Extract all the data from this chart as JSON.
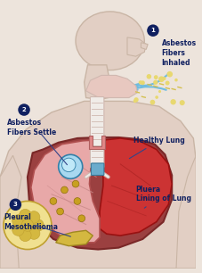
{
  "background_color": "#ede4dc",
  "body_color": "#e2cfc4",
  "body_outline": "#c9b5a5",
  "lung_left_color": "#e8a8a8",
  "lung_left_outline": "#b05050",
  "lung_right_color": "#cc3333",
  "lung_right_outline": "#991111",
  "chest_bg_color": "#9b4040",
  "trachea_color": "#f0ece8",
  "trachea_outline": "#d0b8b0",
  "trachea_ring": "#d4c0b8",
  "throat_color": "#e8c8c0",
  "bronchi_blue": "#6aaccc",
  "bronchi_blue_outline": "#3a7a9a",
  "pleura_outline": "#7a2828",
  "tumor_color": "#a8d8f0",
  "tumor_outline": "#3380a8",
  "mesothelioma_color": "#d4b840",
  "meso_outline": "#a08820",
  "asbestos_dot_color": "#c8a020",
  "asbestos_air_color": "#e0d080",
  "fiber_arrow_color": "#70bce0",
  "label_color": "#102060",
  "step_circle_color": "#102060",
  "cell_color": "#f0e090",
  "cell_outline": "#c0a030",
  "cell_inner_color": "#d4b840",
  "title_1": "Asbestos\nFibers\nInhaled",
  "title_2": "Asbestos\nFibers Settle",
  "title_3": "Pleural\nMesothelioma",
  "label_healthy": "Healthy Lung",
  "label_pluera": "Pluera",
  "label_pluera_sub": "Lining of Lung",
  "figsize": [
    2.28,
    3.06
  ],
  "dpi": 100
}
